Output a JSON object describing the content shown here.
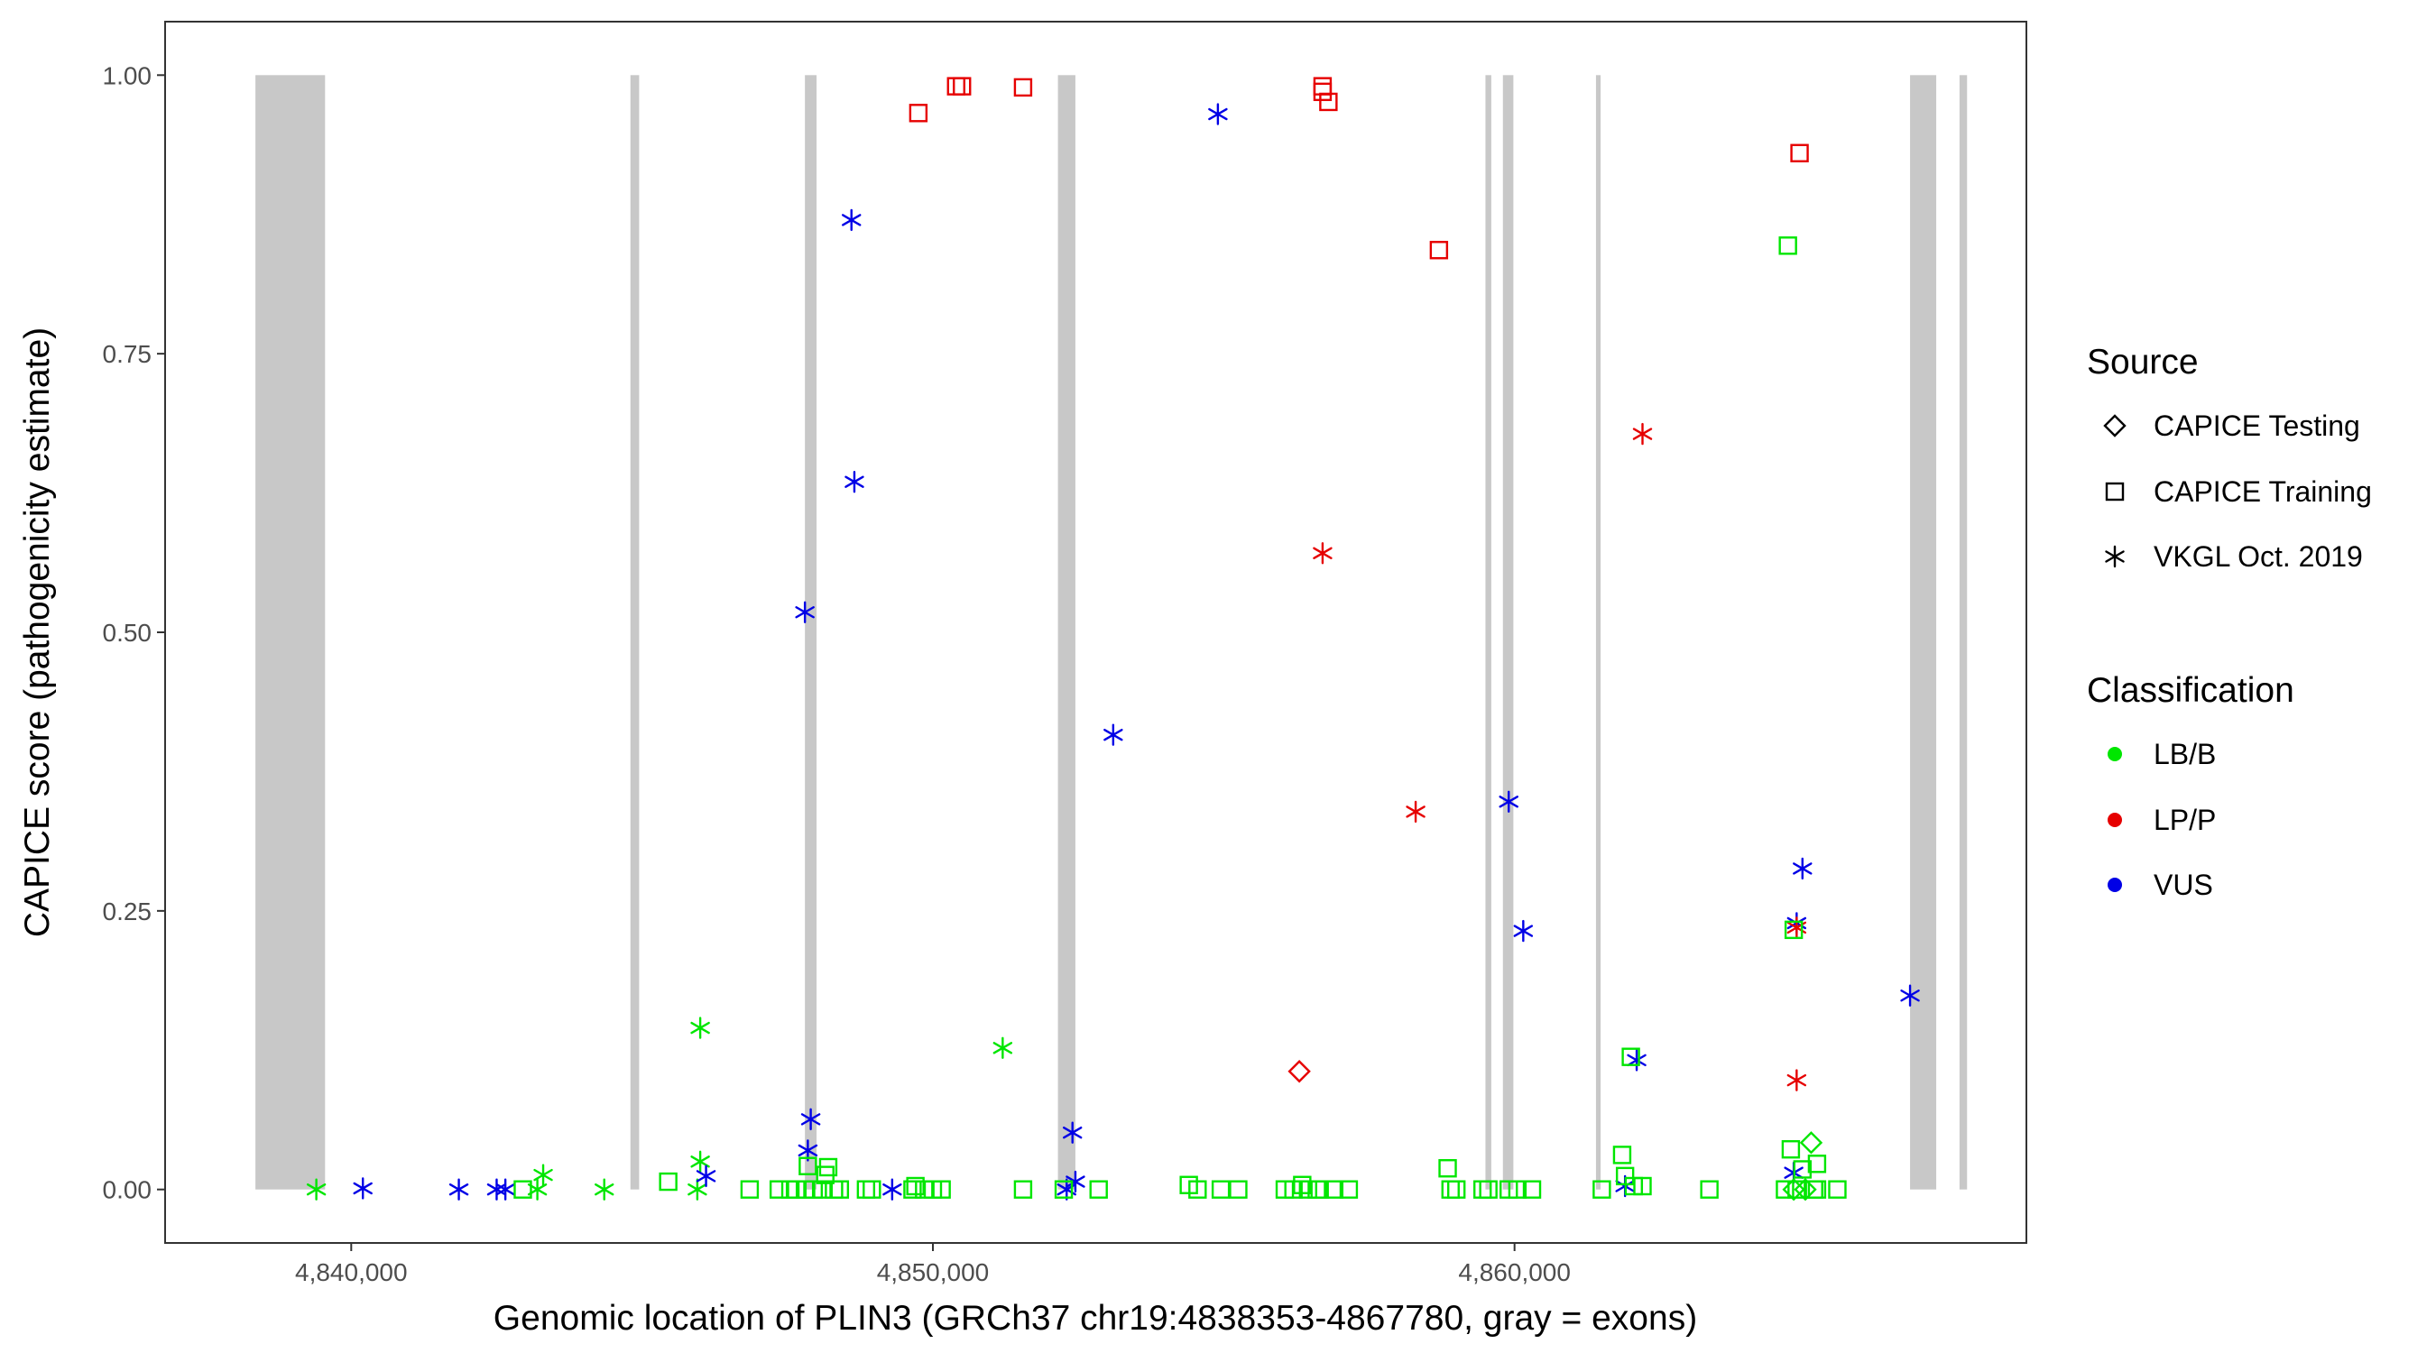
{
  "chart_data": {
    "type": "scatter",
    "xlabel": "Genomic location of PLIN3 (GRCh37 chr19:4838353-4867780, gray = exons)",
    "ylabel": "CAPICE score (pathogenicity estimate)",
    "xlim": [
      4836800,
      4868800
    ],
    "ylim": [
      -0.048,
      1.048
    ],
    "xticks": [
      4840000,
      4850000,
      4860000
    ],
    "xtick_labels": [
      "4,840,000",
      "4,850,000",
      "4,860,000"
    ],
    "yticks": [
      0,
      0.25,
      0.5,
      0.75,
      1
    ],
    "ytick_labels": [
      "0.00",
      "0.25",
      "0.50",
      "0.75",
      "1.00"
    ],
    "grid": false,
    "legend_position": "right",
    "exon_color": "#c8c8c8",
    "exons": [
      {
        "start": 4838353,
        "end": 4839550
      },
      {
        "start": 4844800,
        "end": 4844950
      },
      {
        "start": 4847800,
        "end": 4848000
      },
      {
        "start": 4852150,
        "end": 4852450
      },
      {
        "start": 4859500,
        "end": 4859600
      },
      {
        "start": 4859800,
        "end": 4859980
      },
      {
        "start": 4861400,
        "end": 4861480
      },
      {
        "start": 4866800,
        "end": 4867250
      },
      {
        "start": 4867650,
        "end": 4867780
      }
    ],
    "legends": {
      "source": {
        "title": "Source",
        "entries": [
          {
            "key": "testing",
            "label": "CAPICE Testing",
            "shape": "diamond"
          },
          {
            "key": "training",
            "label": "CAPICE Training",
            "shape": "square"
          },
          {
            "key": "vkgl",
            "label": "VKGL Oct. 2019",
            "shape": "asterisk"
          }
        ]
      },
      "classification": {
        "title": "Classification",
        "entries": [
          {
            "key": "LB/B",
            "label": "LB/B",
            "color": "#00e600"
          },
          {
            "key": "LP/P",
            "label": "LP/P",
            "color": "#e60000"
          },
          {
            "key": "VUS",
            "label": "VUS",
            "color": "#0000e6"
          }
        ]
      }
    },
    "series": [
      {
        "source": "vkgl",
        "class": "LB/B",
        "points": [
          [
            4839400,
            0.0
          ],
          [
            4843200,
            0.0
          ],
          [
            4843300,
            0.013
          ],
          [
            4844350,
            0.0
          ],
          [
            4845950,
            0.0
          ],
          [
            4846000,
            0.145
          ],
          [
            4846000,
            0.025
          ],
          [
            4851200,
            0.127
          ]
        ]
      },
      {
        "source": "vkgl",
        "class": "VUS",
        "points": [
          [
            4840200,
            0.001
          ],
          [
            4841850,
            0.0
          ],
          [
            4842500,
            0.0
          ],
          [
            4842650,
            0.0
          ],
          [
            4846100,
            0.012
          ],
          [
            4847800,
            0.518
          ],
          [
            4847900,
            0.063
          ],
          [
            4847850,
            0.035
          ],
          [
            4848600,
            0.87
          ],
          [
            4848650,
            0.635
          ],
          [
            4849300,
            0.0
          ],
          [
            4852300,
            0.0
          ],
          [
            4852400,
            0.051
          ],
          [
            4852450,
            0.007
          ],
          [
            4853100,
            0.408
          ],
          [
            4854900,
            0.965
          ],
          [
            4859900,
            0.348
          ],
          [
            4860150,
            0.232
          ],
          [
            4861900,
            0.003
          ],
          [
            4862100,
            0.116
          ],
          [
            4864800,
            0.015
          ],
          [
            4864850,
            0.239
          ],
          [
            4864950,
            0.288
          ],
          [
            4866800,
            0.174
          ]
        ]
      },
      {
        "source": "vkgl",
        "class": "LP/P",
        "points": [
          [
            4856700,
            0.571
          ],
          [
            4858300,
            0.339
          ],
          [
            4862200,
            0.678
          ],
          [
            4864850,
            0.235
          ],
          [
            4864850,
            0.098
          ]
        ]
      },
      {
        "source": "testing",
        "class": "LP/P",
        "points": [
          [
            4856300,
            0.106
          ]
        ]
      },
      {
        "source": "testing",
        "class": "LB/B",
        "points": [
          [
            4864800,
            0.0
          ],
          [
            4865000,
            0.0
          ],
          [
            4865100,
            0.042
          ]
        ]
      },
      {
        "source": "training",
        "class": "LP/P",
        "points": [
          [
            4849750,
            0.966
          ],
          [
            4850400,
            0.99
          ],
          [
            4850500,
            0.99
          ],
          [
            4851550,
            0.989
          ],
          [
            4856700,
            0.99
          ],
          [
            4856700,
            0.985
          ],
          [
            4856800,
            0.976
          ],
          [
            4858700,
            0.843
          ],
          [
            4864900,
            0.93
          ]
        ]
      },
      {
        "source": "training",
        "class": "LB/B",
        "points": [
          [
            4842950,
            0.0
          ],
          [
            4845450,
            0.007
          ],
          [
            4846850,
            0.0
          ],
          [
            4847350,
            0.0
          ],
          [
            4847550,
            0.0
          ],
          [
            4847650,
            0.0
          ],
          [
            4847800,
            0.0
          ],
          [
            4847850,
            0.021
          ],
          [
            4847950,
            0.0
          ],
          [
            4848100,
            0.0
          ],
          [
            4848150,
            0.013
          ],
          [
            4848200,
            0.02
          ],
          [
            4848300,
            0.0
          ],
          [
            4848400,
            0.0
          ],
          [
            4848850,
            0.0
          ],
          [
            4848950,
            0.0
          ],
          [
            4849650,
            0.0
          ],
          [
            4849700,
            0.003
          ],
          [
            4849850,
            0.0
          ],
          [
            4850000,
            0.0
          ],
          [
            4850150,
            0.0
          ],
          [
            4851550,
            0.0
          ],
          [
            4852250,
            0.0
          ],
          [
            4852850,
            0.0
          ],
          [
            4854400,
            0.004
          ],
          [
            4854550,
            0.0
          ],
          [
            4854950,
            0.0
          ],
          [
            4855250,
            0.0
          ],
          [
            4856050,
            0.0
          ],
          [
            4856200,
            0.0
          ],
          [
            4856350,
            0.004
          ],
          [
            4856450,
            0.0
          ],
          [
            4856600,
            0.0
          ],
          [
            4856650,
            0.0
          ],
          [
            4856900,
            0.0
          ],
          [
            4857150,
            0.0
          ],
          [
            4858850,
            0.019
          ],
          [
            4858900,
            0.0
          ],
          [
            4859000,
            0.0
          ],
          [
            4859450,
            0.0
          ],
          [
            4859550,
            0.0
          ],
          [
            4859900,
            0.0
          ],
          [
            4860050,
            0.0
          ],
          [
            4860300,
            0.0
          ],
          [
            4861500,
            0.0
          ],
          [
            4861850,
            0.031
          ],
          [
            4861900,
            0.012
          ],
          [
            4862000,
            0.119
          ],
          [
            4862050,
            0.003
          ],
          [
            4862200,
            0.003
          ],
          [
            4863350,
            0.0
          ],
          [
            4864650,
            0.0
          ],
          [
            4864700,
            0.847
          ],
          [
            4864750,
            0.036
          ],
          [
            4864800,
            0.233
          ],
          [
            4864850,
            0.0
          ],
          [
            4864950,
            0.018
          ],
          [
            4865150,
            0.0
          ],
          [
            4865200,
            0.0
          ],
          [
            4865200,
            0.023
          ],
          [
            4865550,
            0.0
          ]
        ]
      }
    ]
  }
}
